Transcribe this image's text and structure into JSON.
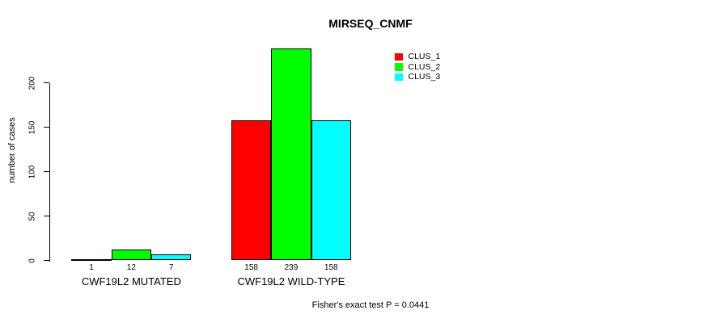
{
  "title": "MIRSEQ_CNMF",
  "ylabel": "number of cases",
  "footer": "Fisher's exact test P = 0.0441",
  "legend": {
    "items": [
      {
        "label": "CLUS_1",
        "color": "#ff0000"
      },
      {
        "label": "CLUS_2",
        "color": "#00ff00"
      },
      {
        "label": "CLUS_3",
        "color": "#00ffff"
      }
    ]
  },
  "chart_data": {
    "type": "bar",
    "title": "MIRSEQ_CNMF",
    "xlabel": "",
    "ylabel": "number of cases",
    "categories": [
      "CWF19L2 MUTATED",
      "CWF19L2 WILD-TYPE"
    ],
    "series": [
      {
        "name": "CLUS_1",
        "color": "#ff0000",
        "values": [
          1,
          158
        ]
      },
      {
        "name": "CLUS_2",
        "color": "#00ff00",
        "values": [
          12,
          239
        ]
      },
      {
        "name": "CLUS_3",
        "color": "#00ffff",
        "values": [
          7,
          158
        ]
      }
    ],
    "yticks": [
      0,
      50,
      100,
      150,
      200
    ],
    "ylim": [
      0,
      240
    ],
    "grid": false,
    "legend_position": "top-right",
    "bar_value_labels_shown": true,
    "annotation": "Fisher's exact test P = 0.0441"
  }
}
